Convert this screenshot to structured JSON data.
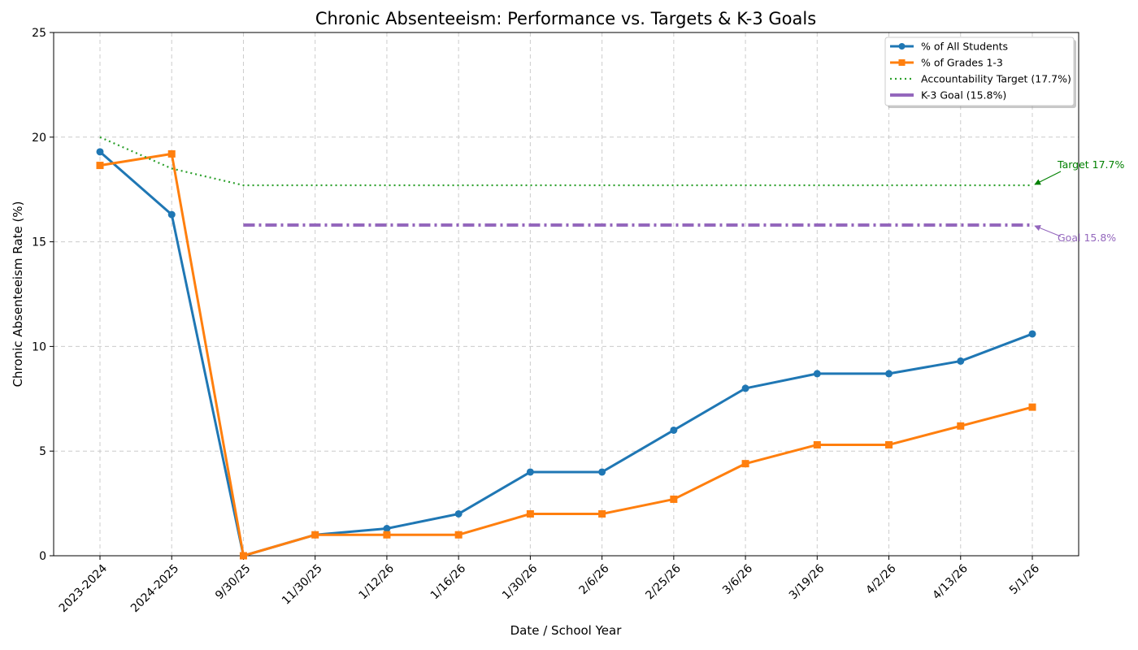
{
  "chart_data": {
    "type": "line",
    "title": "Chronic Absenteeism: Performance vs. Targets & K-3 Goals",
    "xlabel": "Date / School Year",
    "ylabel": "Chronic Absenteeism Rate (%)",
    "ylim": [
      0,
      25
    ],
    "yticks": [
      0,
      5,
      10,
      15,
      20,
      25
    ],
    "grid": true,
    "legend_position": "top-right",
    "categories": [
      "2023-2024",
      "2024-2025",
      "9/30/25",
      "11/30/25",
      "1/12/26",
      "1/16/26",
      "1/30/26",
      "2/6/26",
      "2/25/26",
      "3/6/26",
      "3/19/26",
      "4/2/26",
      "4/13/26",
      "5/1/26"
    ],
    "series": [
      {
        "name": "% of All Students",
        "key": "all_students",
        "color": "#1f77b4",
        "style": "solid",
        "marker": "circle",
        "values": [
          19.3,
          16.3,
          0,
          1.0,
          1.3,
          2.0,
          4.0,
          4.0,
          6.0,
          8.0,
          8.7,
          8.7,
          9.3,
          10.6
        ]
      },
      {
        "name": "% of Grades 1-3",
        "key": "grades_1_3",
        "color": "#ff7f0e",
        "style": "solid",
        "marker": "square",
        "values": [
          18.65,
          19.2,
          0,
          1.0,
          1.0,
          1.0,
          2.0,
          2.0,
          2.7,
          4.4,
          5.3,
          5.3,
          6.2,
          7.1
        ]
      },
      {
        "name": "Accountability Target (17.7%)",
        "key": "accountability_target",
        "color": "#2ca02c",
        "style": "dotted",
        "marker": "none",
        "values": [
          20.0,
          18.5,
          17.7,
          17.7,
          17.7,
          17.7,
          17.7,
          17.7,
          17.7,
          17.7,
          17.7,
          17.7,
          17.7,
          17.7
        ]
      },
      {
        "name": "K-3 Goal (15.8%)",
        "key": "k3_goal",
        "color": "#9467bd",
        "style": "dashdot",
        "marker": "none",
        "values": [
          null,
          null,
          15.8,
          15.8,
          15.8,
          15.8,
          15.8,
          15.8,
          15.8,
          15.8,
          15.8,
          15.8,
          15.8,
          15.8
        ]
      }
    ],
    "annotations": [
      {
        "text": "Target 17.7%",
        "x": "5/1/26",
        "y": 17.7,
        "color": "#008000",
        "placement": "above-right"
      },
      {
        "text": "Goal 15.8%",
        "x": "5/1/26",
        "y": 15.8,
        "color": "#9467bd",
        "placement": "below-right"
      }
    ]
  }
}
